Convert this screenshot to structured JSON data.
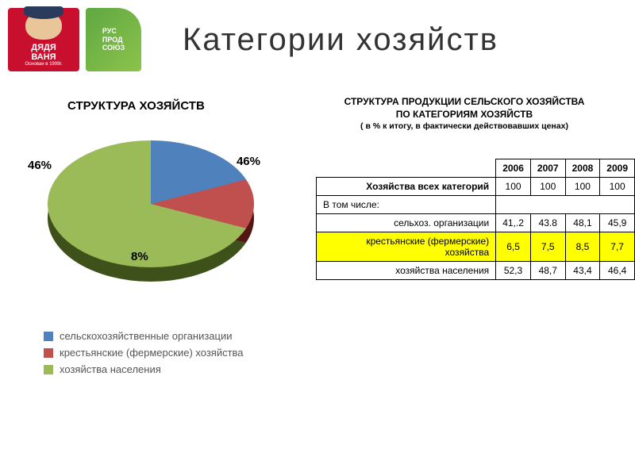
{
  "logos": {
    "brand1_line1": "ДЯДЯ",
    "brand1_line2": "ВАНЯ",
    "brand1_sub": "Основан в 1999г.",
    "brand2": "РУС\nПРОД\nСОЮЗ"
  },
  "page_title": "Категории хозяйств",
  "pie": {
    "title": "СТРУКТУРА ХОЗЯЙСТВ",
    "type": "pie-3d",
    "slices": [
      {
        "label": "сельскохозяйственные организации",
        "value": 46,
        "color": "#4f81bd",
        "pct": "46%"
      },
      {
        "label": "крестьянские (фермерские) хозяйства",
        "value": 8,
        "color": "#c0504d",
        "pct": "8%"
      },
      {
        "label": "хозяйства населения",
        "value": 46,
        "color": "#9bbb59",
        "pct": "46%"
      }
    ],
    "label_color": "#333333",
    "label_fontsize": 15,
    "legend_fontsize": 13
  },
  "table": {
    "title_line1": "СТРУКТУРА ПРОДУКЦИИ СЕЛЬСКОГО ХОЗЯЙСТВА",
    "title_line2": "ПО КАТЕГОРИЯМ ХОЗЯЙСТВ",
    "subtitle": "( в % к итогу, в фактически действовавших ценах)",
    "years": [
      "2006",
      "2007",
      "2008",
      "2009"
    ],
    "rows": [
      {
        "head": "Хозяйства всех категорий",
        "bold": true,
        "cells": [
          "100",
          "100",
          "100",
          "100"
        ]
      },
      {
        "head": "В том числе:",
        "noborder": true,
        "cells": [
          "",
          "",
          "",
          ""
        ]
      },
      {
        "head": "сельхоз. организации",
        "cells": [
          "41,.2",
          "43.8",
          "48,1",
          "45,9"
        ]
      },
      {
        "head": "крестьянские (фермерские) хозяйства",
        "highlight": true,
        "cells": [
          "6,5",
          "7,5",
          "8,5",
          "7,7"
        ]
      },
      {
        "head": "хозяйства населения",
        "cells": [
          "52,3",
          "48,7",
          "43,4",
          "46,4"
        ]
      }
    ],
    "highlight_color": "#ffff00",
    "border_color": "#000000",
    "fontsize": 12
  },
  "colors": {
    "background": "#ffffff",
    "title_color": "#333333"
  }
}
